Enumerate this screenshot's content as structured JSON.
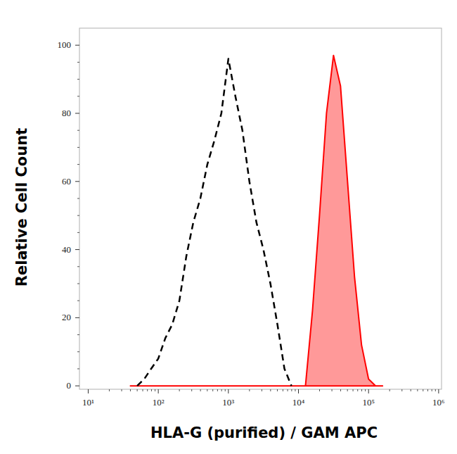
{
  "chart_data": {
    "type": "line",
    "x_label": "HLA-G (purified) / GAM APC",
    "y_label": "Relative Cell Count",
    "log": "x",
    "xlim": [
      7.5,
      1100000
    ],
    "xticks": [
      {
        "value": 10,
        "label": "10¹"
      },
      {
        "value": 100,
        "label": "10²"
      },
      {
        "value": 1000,
        "label": "10³"
      },
      {
        "value": 10000,
        "label": "10⁴"
      },
      {
        "value": 100000,
        "label": "10⁵"
      },
      {
        "value": 1000000,
        "label": "10⁶"
      }
    ],
    "ylim": [
      -1,
      105
    ],
    "yticks": [
      0,
      20,
      40,
      60,
      80,
      100
    ],
    "grid": false,
    "x": [
      40,
      50,
      63,
      79,
      100,
      126,
      158,
      200,
      251,
      316,
      398,
      501,
      631,
      794,
      1000,
      1259,
      1585,
      1995,
      2512,
      3162,
      3981,
      5012,
      6310,
      7943,
      10000,
      12589,
      15849,
      19953,
      25119,
      31623,
      39811,
      50119,
      63096,
      79433,
      100000,
      125893,
      158489
    ],
    "series": [
      {
        "type": "line",
        "line_style": "dashed",
        "color": "#000000",
        "values": [
          null,
          0,
          2,
          5,
          8,
          14,
          18,
          25,
          38,
          48,
          55,
          65,
          72,
          80,
          96,
          85,
          75,
          60,
          48,
          40,
          30,
          18,
          5,
          0,
          null,
          null,
          null,
          null,
          null,
          null,
          null,
          null,
          null,
          null,
          null,
          null,
          null
        ]
      },
      {
        "type": "area",
        "line_style": "solid",
        "color": "#ff0000",
        "values": [
          0,
          0,
          0,
          0,
          0,
          0,
          0,
          0,
          0,
          0,
          0,
          0,
          0,
          0,
          0,
          0,
          0,
          0,
          0,
          0,
          0,
          0,
          0,
          0,
          0,
          0,
          22,
          50,
          80,
          97,
          88,
          60,
          32,
          12,
          2,
          0,
          0
        ]
      }
    ]
  }
}
